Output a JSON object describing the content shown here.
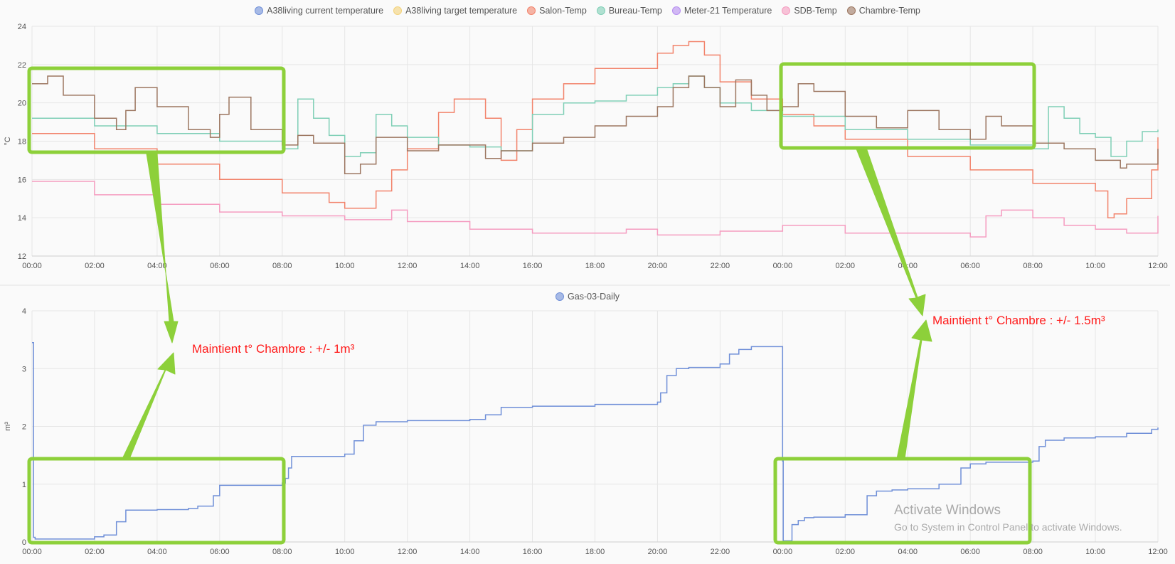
{
  "temp_legend": [
    {
      "label": "A38living current temperature",
      "color": "#6f8fd8"
    },
    {
      "label": "A38living target temperature",
      "color": "#f3d27a"
    },
    {
      "label": "Salon-Temp",
      "color": "#f2836b"
    },
    {
      "label": "Bureau-Temp",
      "color": "#7fcfb6"
    },
    {
      "label": "Meter-21 Temperature",
      "color": "#b58cf0"
    },
    {
      "label": "SDB-Temp",
      "color": "#f59cc0"
    },
    {
      "label": "Chambre-Temp",
      "color": "#9c7660"
    }
  ],
  "gas_legend": [
    {
      "label": "Gas-03-Daily",
      "color": "#6f8fd8"
    }
  ],
  "annotations": {
    "left": "Maintient t° Chambre : +/- 1m³",
    "right": "Maintient t° Chambre : +/- 1.5m³"
  },
  "watermark": {
    "title": "Activate Windows",
    "subtitle": "Go to System in Control Panel to activate Windows."
  },
  "highlight_color": "#8dd03a",
  "chart_data": [
    {
      "type": "line",
      "ylabel": "°C",
      "ylim": [
        12,
        24
      ],
      "yticks": [
        "12",
        "14",
        "16",
        "18",
        "20",
        "22",
        "24"
      ],
      "x_ticks": [
        "00:00",
        "02:00",
        "04:00",
        "06:00",
        "08:00",
        "10:00",
        "12:00",
        "14:00",
        "16:00",
        "18:00",
        "20:00",
        "22:00",
        "00:00",
        "02:00",
        "04:00",
        "06:00",
        "08:00",
        "10:00",
        "12:00"
      ],
      "xlim_hours": [
        0,
        36
      ],
      "grid": true,
      "legend_position": "top",
      "series": [
        {
          "name": "Salon-Temp",
          "color": "#f2836b",
          "x": [
            0,
            2,
            4,
            6,
            8,
            9.5,
            10,
            11,
            11.5,
            12,
            13,
            13.5,
            14.5,
            15,
            15.5,
            16,
            17,
            18,
            19,
            20,
            20.5,
            21,
            21.5,
            22,
            23,
            24,
            25,
            26,
            28,
            30,
            32,
            34,
            34.4,
            34.6,
            35,
            35.8,
            36
          ],
          "y": [
            18.4,
            17.6,
            16.8,
            16.0,
            15.3,
            14.8,
            14.5,
            15.4,
            16.5,
            17.6,
            19.5,
            20.2,
            19.2,
            17.0,
            18.6,
            20.2,
            21.0,
            21.8,
            21.8,
            22.6,
            23.0,
            23.2,
            22.5,
            21.1,
            20.2,
            19.4,
            18.8,
            18.1,
            17.2,
            16.5,
            15.8,
            15.4,
            14.0,
            14.2,
            15.0,
            16.5,
            18.2
          ]
        },
        {
          "name": "Bureau-Temp",
          "color": "#7fcfb6",
          "x": [
            0,
            2,
            4,
            6,
            8,
            8.5,
            9,
            9.5,
            10,
            10.5,
            11,
            11.5,
            12,
            13,
            14,
            15,
            16,
            17,
            18,
            19,
            20,
            20.5,
            21,
            21.5,
            22,
            23,
            24,
            26,
            28,
            30,
            32,
            32.5,
            33,
            33.5,
            34,
            34.5,
            35,
            35.5,
            36
          ],
          "y": [
            19.2,
            18.8,
            18.4,
            18.0,
            17.6,
            20.2,
            19.2,
            18.3,
            17.2,
            17.4,
            19.4,
            18.8,
            18.2,
            17.8,
            17.7,
            17.5,
            19.4,
            20.0,
            20.1,
            20.4,
            20.8,
            21.0,
            21.4,
            20.8,
            20.0,
            19.6,
            19.3,
            18.6,
            18.1,
            17.8,
            17.6,
            19.8,
            19.2,
            18.4,
            18.2,
            17.2,
            18.0,
            18.5,
            18.6
          ]
        },
        {
          "name": "SDB-Temp",
          "color": "#f59cc0",
          "x": [
            0,
            2,
            4,
            6,
            8,
            10,
            11,
            11.5,
            12,
            14,
            16,
            18,
            19,
            20,
            22,
            24,
            26,
            28,
            30,
            30.5,
            31,
            32,
            33,
            34,
            35,
            35.8,
            36
          ],
          "y": [
            15.9,
            15.2,
            14.7,
            14.3,
            14.1,
            13.9,
            13.9,
            14.4,
            13.8,
            13.4,
            13.2,
            13.2,
            13.4,
            13.1,
            13.3,
            13.6,
            13.2,
            13.2,
            13.0,
            14.1,
            14.4,
            14.0,
            13.6,
            13.4,
            13.2,
            13.2,
            14.1
          ]
        },
        {
          "name": "Chambre-Temp",
          "color": "#9c7660",
          "x": [
            0,
            0.5,
            1,
            2,
            2.7,
            3,
            3.3,
            4,
            5,
            5.7,
            6,
            6.3,
            7,
            8,
            8.5,
            9,
            10,
            10.5,
            11,
            12,
            13,
            14,
            14.5,
            15,
            16,
            17,
            18,
            19,
            20,
            20.5,
            21,
            21.5,
            22,
            22.5,
            23,
            23.5,
            24,
            24.5,
            25,
            26,
            27,
            28,
            29,
            30,
            30.5,
            31,
            32,
            33,
            34,
            34.8,
            35,
            36
          ],
          "y": [
            21.0,
            21.4,
            20.4,
            19.2,
            18.6,
            19.6,
            20.8,
            19.8,
            18.6,
            18.2,
            19.4,
            20.3,
            18.6,
            17.8,
            18.3,
            17.9,
            16.3,
            16.8,
            18.2,
            17.5,
            17.8,
            17.8,
            17.1,
            17.5,
            17.9,
            18.2,
            18.8,
            19.3,
            19.8,
            20.8,
            21.4,
            20.8,
            19.8,
            21.2,
            20.4,
            19.6,
            19.8,
            21.0,
            20.6,
            19.3,
            18.7,
            19.6,
            18.6,
            18.1,
            19.3,
            18.8,
            17.9,
            17.6,
            17.0,
            16.6,
            16.8,
            17.6
          ]
        }
      ]
    },
    {
      "type": "line",
      "ylabel": "m³",
      "ylim": [
        0,
        4
      ],
      "yticks": [
        "0",
        "1",
        "2",
        "3",
        "4"
      ],
      "x_ticks": [
        "00:00",
        "02:00",
        "04:00",
        "06:00",
        "08:00",
        "10:00",
        "12:00",
        "14:00",
        "16:00",
        "18:00",
        "20:00",
        "22:00",
        "00:00",
        "02:00",
        "04:00",
        "06:00",
        "08:00",
        "10:00",
        "12:00"
      ],
      "xlim_hours": [
        0,
        36
      ],
      "grid": true,
      "legend_position": "top",
      "series": [
        {
          "name": "Gas-03-Daily",
          "color": "#6f8fd8",
          "x": [
            0,
            0.05,
            0.1,
            2,
            2.3,
            2.7,
            3,
            4,
            5,
            5.3,
            5.8,
            6,
            8,
            8.1,
            8.2,
            8.3,
            10,
            10.3,
            10.6,
            11,
            12,
            14,
            14.5,
            15,
            16,
            18,
            20,
            20.1,
            20.3,
            20.6,
            21,
            22,
            22.3,
            22.6,
            23,
            23.99,
            24.0,
            24.02,
            24.3,
            24.5,
            24.7,
            25,
            26,
            26.7,
            27,
            27.5,
            28,
            29,
            29.7,
            30,
            30.5,
            31,
            32,
            32.2,
            32.4,
            33,
            34,
            35,
            35.8,
            36
          ],
          "y": [
            3.45,
            0.08,
            0.05,
            0.09,
            0.12,
            0.35,
            0.55,
            0.56,
            0.58,
            0.62,
            0.8,
            0.98,
            1.02,
            1.1,
            1.28,
            1.48,
            1.52,
            1.75,
            2.02,
            2.08,
            2.1,
            2.12,
            2.2,
            2.33,
            2.35,
            2.38,
            2.42,
            2.58,
            2.88,
            3.0,
            3.02,
            3.08,
            3.25,
            3.33,
            3.38,
            3.38,
            1.4,
            0.02,
            0.3,
            0.37,
            0.42,
            0.43,
            0.47,
            0.8,
            0.88,
            0.9,
            0.92,
            1.0,
            1.28,
            1.35,
            1.38,
            1.38,
            1.4,
            1.65,
            1.76,
            1.8,
            1.82,
            1.88,
            1.95,
            1.98
          ]
        }
      ]
    }
  ]
}
